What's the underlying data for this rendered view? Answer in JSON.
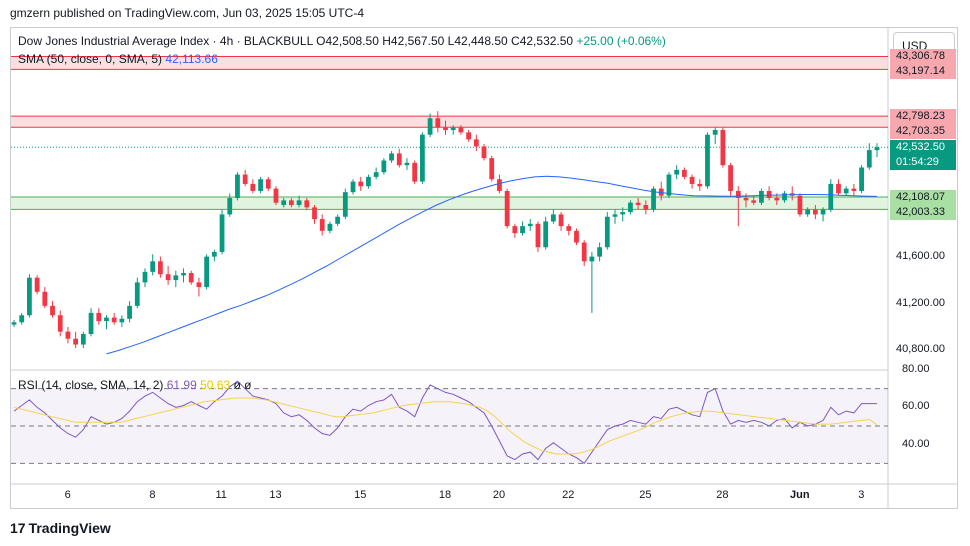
{
  "attribution": "gmzern published on TradingView.com, Jun 03, 2025 15:05 UTC-4",
  "logo_text": "TradingView",
  "currency_button": "USD",
  "legend": {
    "symbol": "Dow Jones Industrial Average Index · 4h · BLACKBULL",
    "open": "O42,508.50",
    "high": "H42,567.50",
    "low": "L42,448.50",
    "close": "C42,532.50",
    "change": "+25.00 (+0.06%)",
    "sma_label": "SMA (50, close, 0, SMA, 5)",
    "sma_value": "42,113.66",
    "rsi_label": "RSI (14, close, SMA, 14, 2)",
    "rsi_value": "61.99",
    "rsi_sma_value": "50.63"
  },
  "colors": {
    "up": "#089981",
    "down": "#f23645",
    "sma": "#2962ff",
    "rsi": "#7e57c2",
    "rsi_sma": "#f5d34e",
    "resistance_zone": "#f8c9cc",
    "support_zone": "#cdecc9"
  },
  "price_tags": [
    {
      "text": "43,306.78",
      "bg": "#f7a8ae",
      "fg": "#131722"
    },
    {
      "text": "43,197.14",
      "bg": "#f7a8ae",
      "fg": "#131722"
    },
    {
      "text": "42,798.23",
      "bg": "#f7a8ae",
      "fg": "#131722"
    },
    {
      "text": "42,703.35",
      "bg": "#f7a8ae",
      "fg": "#131722"
    },
    {
      "text": "42,532.50",
      "bg": "#089981",
      "fg": "#ffffff"
    },
    {
      "text": "01:54:29",
      "bg": "#089981",
      "fg": "#ffffff"
    },
    {
      "text": "42,108.07",
      "bg": "#a8dfa3",
      "fg": "#131722"
    },
    {
      "text": "42,003.33",
      "bg": "#a8dfa3",
      "fg": "#131722"
    }
  ],
  "chart_data": [
    {
      "type": "candlestick",
      "ylim": [
        40650,
        43550
      ],
      "y_ticks": [
        "41,600.00",
        "41,200.00",
        "40,800.00"
      ],
      "x_tick_labels": [
        "6",
        "8",
        "11",
        "13",
        "15",
        "18",
        "20",
        "22",
        "25",
        "28",
        "Jun",
        "3"
      ],
      "zones": [
        {
          "low": 43197.14,
          "high": 43306.78,
          "kind": "resistance"
        },
        {
          "low": 42703.35,
          "high": 42798.23,
          "kind": "resistance"
        },
        {
          "low": 42003.33,
          "high": 42108.07,
          "kind": "support"
        }
      ],
      "last_price": 42532.5,
      "sma_value": 42113.66,
      "candles": [
        [
          41020,
          41060,
          41000,
          41040
        ],
        [
          41040,
          41120,
          41020,
          41100
        ],
        [
          41100,
          41450,
          41080,
          41420
        ],
        [
          41420,
          41440,
          41280,
          41300
        ],
        [
          41300,
          41340,
          41160,
          41180
        ],
        [
          41180,
          41220,
          41080,
          41100
        ],
        [
          41100,
          41140,
          40920,
          40960
        ],
        [
          40960,
          41000,
          40860,
          40900
        ],
        [
          40900,
          40960,
          40820,
          40850
        ],
        [
          40850,
          40960,
          40820,
          40940
        ],
        [
          40940,
          41160,
          40920,
          41120
        ],
        [
          41120,
          41160,
          41020,
          41050
        ],
        [
          41050,
          41100,
          40980,
          41080
        ],
        [
          41080,
          41120,
          41020,
          41040
        ],
        [
          41040,
          41100,
          41000,
          41070
        ],
        [
          41070,
          41220,
          41040,
          41180
        ],
        [
          41180,
          41420,
          41160,
          41380
        ],
        [
          41380,
          41500,
          41340,
          41470
        ],
        [
          41470,
          41620,
          41440,
          41560
        ],
        [
          41560,
          41600,
          41420,
          41450
        ],
        [
          41450,
          41520,
          41360,
          41400
        ],
        [
          41400,
          41480,
          41340,
          41440
        ],
        [
          41440,
          41500,
          41380,
          41460
        ],
        [
          41460,
          41480,
          41360,
          41380
        ],
        [
          41380,
          41420,
          41260,
          41340
        ],
        [
          41340,
          41620,
          41320,
          41600
        ],
        [
          41600,
          41660,
          41560,
          41640
        ],
        [
          41640,
          42000,
          41620,
          41960
        ],
        [
          41960,
          42140,
          41940,
          42100
        ],
        [
          42100,
          42320,
          42080,
          42300
        ],
        [
          42300,
          42340,
          42200,
          42220
        ],
        [
          42220,
          42260,
          42140,
          42160
        ],
        [
          42160,
          42280,
          42140,
          42260
        ],
        [
          42260,
          42280,
          42160,
          42180
        ],
        [
          42180,
          42200,
          42040,
          42060
        ],
        [
          42040,
          42100,
          42020,
          42080
        ],
        [
          42080,
          42100,
          42020,
          42040
        ],
        [
          42040,
          42120,
          42020,
          42080
        ],
        [
          42080,
          42100,
          42000,
          42020
        ],
        [
          42020,
          42040,
          41880,
          41920
        ],
        [
          41920,
          41960,
          41780,
          41820
        ],
        [
          41820,
          41900,
          41800,
          41880
        ],
        [
          41880,
          41960,
          41860,
          41940
        ],
        [
          41940,
          42180,
          41920,
          42150
        ],
        [
          42150,
          42260,
          42130,
          42240
        ],
        [
          42240,
          42280,
          42160,
          42200
        ],
        [
          42200,
          42300,
          42180,
          42280
        ],
        [
          42280,
          42360,
          42260,
          42320
        ],
        [
          42320,
          42440,
          42300,
          42420
        ],
        [
          42420,
          42500,
          42400,
          42480
        ],
        [
          42480,
          42520,
          42360,
          42380
        ],
        [
          42380,
          42440,
          42340,
          42400
        ],
        [
          42400,
          42420,
          42220,
          42240
        ],
        [
          42240,
          42660,
          42220,
          42640
        ],
        [
          42640,
          42820,
          42620,
          42780
        ],
        [
          42780,
          42840,
          42660,
          42700
        ],
        [
          42700,
          42760,
          42640,
          42680
        ],
        [
          42680,
          42720,
          42640,
          42700
        ],
        [
          42700,
          42720,
          42640,
          42660
        ],
        [
          42660,
          42680,
          42580,
          42600
        ],
        [
          42600,
          42640,
          42500,
          42540
        ],
        [
          42540,
          42560,
          42420,
          42440
        ],
        [
          42440,
          42460,
          42240,
          42260
        ],
        [
          42260,
          42300,
          42140,
          42160
        ],
        [
          42160,
          42180,
          41840,
          41860
        ],
        [
          41860,
          41880,
          41760,
          41800
        ],
        [
          41800,
          41900,
          41780,
          41860
        ],
        [
          41860,
          41920,
          41820,
          41880
        ],
        [
          41880,
          41900,
          41640,
          41680
        ],
        [
          41680,
          41940,
          41660,
          41900
        ],
        [
          41900,
          42000,
          41880,
          41960
        ],
        [
          41960,
          41980,
          41820,
          41860
        ],
        [
          41860,
          41880,
          41780,
          41820
        ],
        [
          41820,
          41840,
          41700,
          41720
        ],
        [
          41720,
          41740,
          41520,
          41560
        ],
        [
          41560,
          41640,
          41120,
          41600
        ],
        [
          41600,
          41720,
          41560,
          41680
        ],
        [
          41680,
          41980,
          41660,
          41940
        ],
        [
          41940,
          42000,
          41880,
          41960
        ],
        [
          41960,
          42020,
          41900,
          41980
        ],
        [
          41980,
          42080,
          41960,
          42060
        ],
        [
          42060,
          42100,
          42000,
          42040
        ],
        [
          42040,
          42080,
          41960,
          42000
        ],
        [
          42000,
          42200,
          41980,
          42180
        ],
        [
          42180,
          42240,
          42080,
          42120
        ],
        [
          42120,
          42320,
          42100,
          42300
        ],
        [
          42300,
          42380,
          42260,
          42340
        ],
        [
          42340,
          42360,
          42260,
          42280
        ],
        [
          42280,
          42300,
          42180,
          42220
        ],
        [
          42220,
          42260,
          42160,
          42200
        ],
        [
          42200,
          42660,
          42180,
          42640
        ],
        [
          42640,
          42700,
          42560,
          42680
        ],
        [
          42680,
          42700,
          42360,
          42380
        ],
        [
          42380,
          42400,
          42120,
          42160
        ],
        [
          42160,
          42200,
          41860,
          42100
        ],
        [
          42100,
          42140,
          42020,
          42080
        ],
        [
          42080,
          42120,
          42040,
          42060
        ],
        [
          42060,
          42180,
          42040,
          42160
        ],
        [
          42160,
          42200,
          42080,
          42100
        ],
        [
          42100,
          42140,
          42040,
          42080
        ],
        [
          42080,
          42160,
          42060,
          42140
        ],
        [
          42140,
          42200,
          42080,
          42120
        ],
        [
          42120,
          42140,
          41940,
          41960
        ],
        [
          41960,
          42020,
          41940,
          42000
        ],
        [
          42000,
          42040,
          41920,
          41960
        ],
        [
          41960,
          42020,
          41900,
          42000
        ],
        [
          42000,
          42260,
          41980,
          42220
        ],
        [
          42220,
          42260,
          42120,
          42140
        ],
        [
          42140,
          42200,
          42120,
          42180
        ],
        [
          42180,
          42220,
          42120,
          42160
        ],
        [
          42160,
          42380,
          42140,
          42360
        ],
        [
          42360,
          42567.5,
          42340,
          42508.5
        ],
        [
          42508.5,
          42567.5,
          42448.5,
          42532.5
        ]
      ],
      "sma_series": [
        40770,
        40800,
        40835,
        40870,
        40910,
        40950,
        40990,
        41030,
        41070,
        41110,
        41150,
        41185,
        41225,
        41265,
        41310,
        41360,
        41410,
        41465,
        41520,
        41580,
        41640,
        41700,
        41760,
        41820,
        41880,
        41935,
        41990,
        42040,
        42085,
        42125,
        42160,
        42190,
        42220,
        42245,
        42265,
        42280,
        42285,
        42280,
        42270,
        42255,
        42240,
        42225,
        42205,
        42185,
        42165,
        42150,
        42138,
        42128,
        42120,
        42118,
        42116,
        42115,
        42117,
        42120,
        42124,
        42126,
        42128,
        42130,
        42130,
        42128,
        42124,
        42120,
        42116,
        42113.66
      ]
    },
    {
      "type": "line",
      "name": "RSI",
      "ylim": [
        20,
        80
      ],
      "y_ticks": [
        "80.00",
        "60.00",
        "40.00"
      ],
      "bands": [
        70,
        50,
        30
      ],
      "rsi": [
        58,
        61,
        64,
        60,
        57,
        53,
        49,
        46,
        44,
        48,
        55,
        53,
        51,
        52,
        54,
        58,
        63,
        66,
        68,
        65,
        62,
        60,
        61,
        63,
        61,
        59,
        63,
        66,
        71,
        74,
        70,
        66,
        65,
        64,
        62,
        57,
        55,
        56,
        53,
        49,
        46,
        45,
        49,
        55,
        59,
        58,
        61,
        63,
        64,
        67,
        60,
        58,
        55,
        65,
        72,
        70,
        68,
        67,
        65,
        63,
        60,
        57,
        50,
        42,
        34,
        32,
        35,
        36,
        32,
        38,
        41,
        38,
        35,
        33,
        30,
        36,
        42,
        48,
        50,
        51,
        53,
        52,
        51,
        55,
        54,
        59,
        60,
        58,
        56,
        55,
        68,
        70,
        58,
        51,
        53,
        52,
        53,
        52,
        50,
        53,
        54,
        49,
        52,
        50,
        51,
        53,
        60,
        56,
        58,
        57,
        62,
        62,
        61.99
      ],
      "rsi_sma": [
        60,
        59,
        58,
        57,
        56,
        55,
        54,
        53,
        52,
        52,
        52,
        52,
        52,
        52,
        52,
        53,
        54,
        55,
        56,
        57,
        58,
        59,
        60,
        61,
        62,
        63,
        63.5,
        64,
        64.5,
        65,
        65,
        65,
        64.5,
        64,
        63,
        62,
        61,
        60,
        59,
        58,
        57,
        56,
        55,
        55,
        55.5,
        56,
        56.5,
        57,
        58,
        59,
        60,
        61,
        61.5,
        62,
        62.5,
        63,
        63,
        63,
        62.5,
        62,
        61,
        60,
        58,
        55,
        51,
        47,
        44,
        41,
        39,
        37,
        36,
        35,
        35,
        35,
        35.5,
        36.5,
        38,
        40,
        42,
        43.5,
        45,
        46.5,
        48,
        50,
        52,
        53.5,
        55,
        56,
        57,
        57.5,
        58,
        58,
        57.5,
        57,
        56.5,
        56,
        55.5,
        55,
        54.5,
        54,
        53.5,
        53,
        52.5,
        52,
        51.5,
        51,
        51,
        51,
        51.5,
        52,
        52.5,
        53,
        53.5,
        50.63
      ]
    }
  ]
}
